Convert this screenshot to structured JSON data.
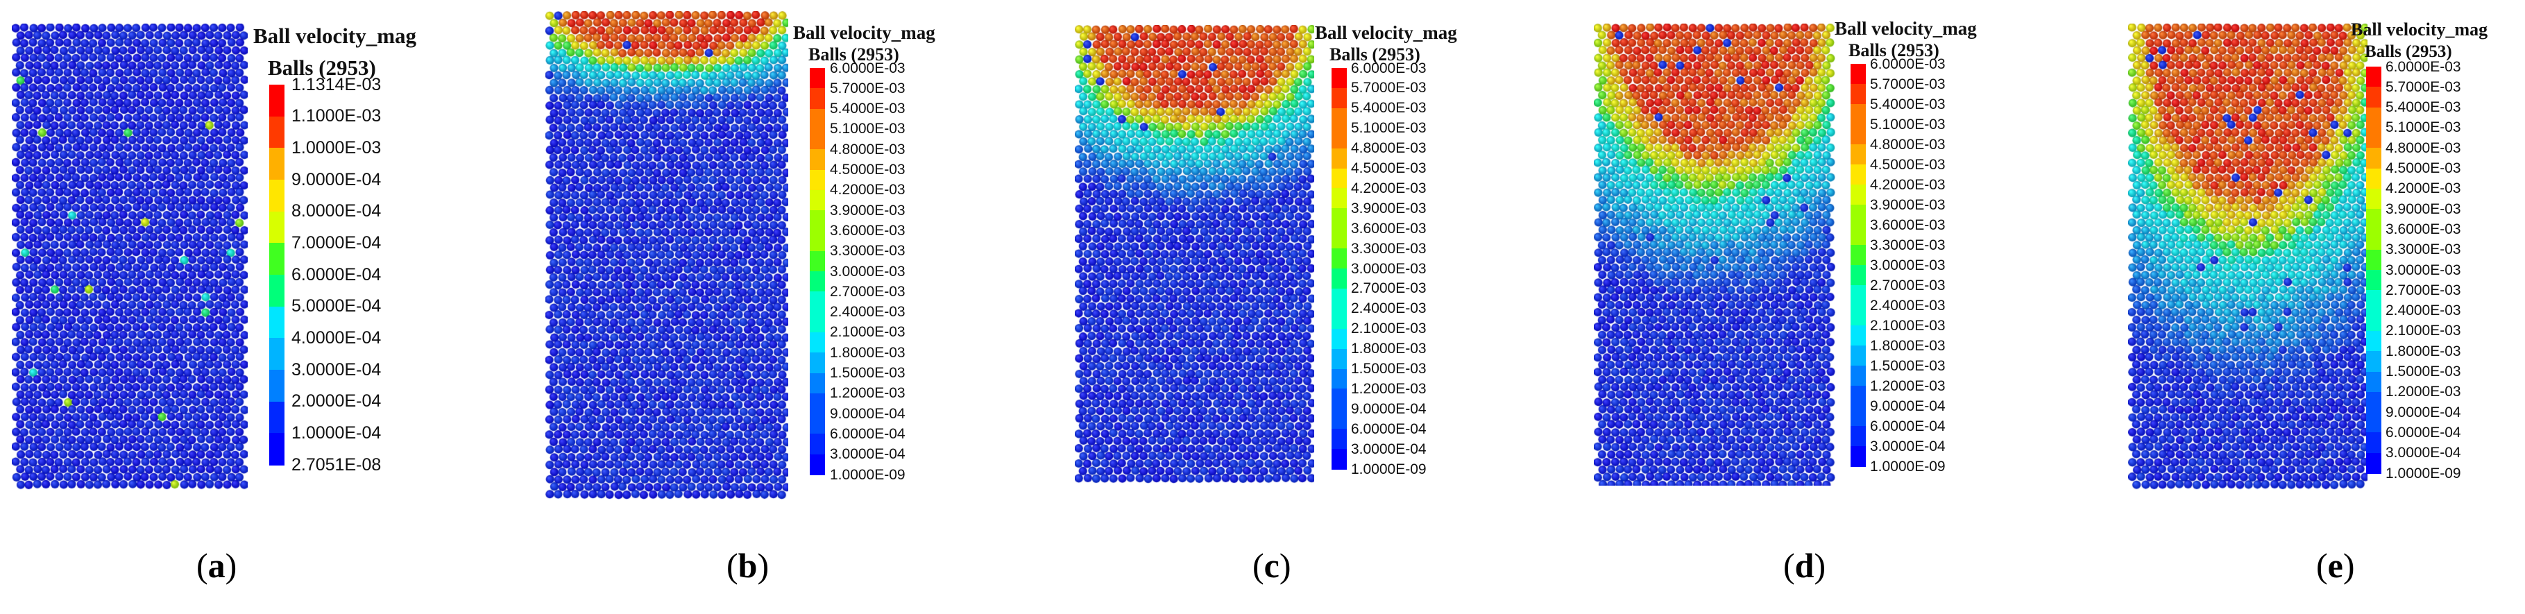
{
  "panels": [
    {
      "id": "a",
      "caption_open": "(",
      "caption_letter": "a",
      "caption_close": ")",
      "legend_title": "Ball velocity_mag",
      "legend_sub": "Balls (2953)",
      "ticks": [
        "1.1314E-03",
        "1.1000E-03",
        "1.0000E-03",
        "9.0000E-04",
        "8.0000E-04",
        "7.0000E-04",
        "6.0000E-04",
        "5.0000E-04",
        "4.0000E-04",
        "3.0000E-04",
        "2.0000E-04",
        "1.0000E-04",
        "2.7051E-08"
      ],
      "hot_fraction": 0.0
    },
    {
      "id": "b",
      "caption_open": "(",
      "caption_letter": "b",
      "caption_close": ")",
      "legend_title": "Ball velocity_mag",
      "legend_sub": "Balls (2953)",
      "ticks": [
        "6.0000E-03",
        "5.7000E-03",
        "5.4000E-03",
        "5.1000E-03",
        "4.8000E-03",
        "4.5000E-03",
        "4.2000E-03",
        "3.9000E-03",
        "3.6000E-03",
        "3.3000E-03",
        "3.0000E-03",
        "2.7000E-03",
        "2.4000E-03",
        "2.1000E-03",
        "1.8000E-03",
        "1.5000E-03",
        "1.2000E-03",
        "9.0000E-04",
        "6.0000E-04",
        "3.0000E-04",
        "1.0000E-09"
      ],
      "hot_fraction": 0.2
    },
    {
      "id": "c",
      "caption_open": "(",
      "caption_letter": "c",
      "caption_close": ")",
      "legend_title": "Ball velocity_mag",
      "legend_sub": "Balls (2953)",
      "ticks": [
        "6.0000E-03",
        "5.7000E-03",
        "5.4000E-03",
        "5.1000E-03",
        "4.8000E-03",
        "4.5000E-03",
        "4.2000E-03",
        "3.9000E-03",
        "3.6000E-03",
        "3.3000E-03",
        "3.0000E-03",
        "2.7000E-03",
        "2.4000E-03",
        "2.1000E-03",
        "1.8000E-03",
        "1.5000E-03",
        "1.2000E-03",
        "9.0000E-04",
        "6.0000E-04",
        "3.0000E-04",
        "1.0000E-09"
      ],
      "hot_fraction": 0.4
    },
    {
      "id": "d",
      "caption_open": "(",
      "caption_letter": "d",
      "caption_close": ")",
      "legend_title": "Ball velocity_mag",
      "legend_sub": "Balls (2953)",
      "ticks": [
        "6.0000E-03",
        "5.7000E-03",
        "5.4000E-03",
        "5.1000E-03",
        "4.8000E-03",
        "4.5000E-03",
        "4.2000E-03",
        "3.9000E-03",
        "3.6000E-03",
        "3.3000E-03",
        "3.0000E-03",
        "2.7000E-03",
        "2.4000E-03",
        "2.1000E-03",
        "1.8000E-03",
        "1.5000E-03",
        "1.2000E-03",
        "9.0000E-04",
        "6.0000E-04",
        "3.0000E-04",
        "1.0000E-09"
      ],
      "hot_fraction": 0.6
    },
    {
      "id": "e",
      "caption_open": "(",
      "caption_letter": "e",
      "caption_close": ")",
      "legend_title": "Ball velocity_mag",
      "legend_sub": "Balls (2953)",
      "ticks": [
        "6.0000E-03",
        "5.7000E-03",
        "5.4000E-03",
        "5.1000E-03",
        "4.8000E-03",
        "4.5000E-03",
        "4.2000E-03",
        "3.9000E-03",
        "3.6000E-03",
        "3.3000E-03",
        "3.0000E-03",
        "2.7000E-03",
        "2.4000E-03",
        "2.1000E-03",
        "1.8000E-03",
        "1.5000E-03",
        "1.2000E-03",
        "9.0000E-04",
        "6.0000E-04",
        "3.0000E-04",
        "1.0000E-09"
      ],
      "hot_fraction": 0.8
    }
  ],
  "colors": {
    "ramp": [
      "#ff0000",
      "#ff3a00",
      "#ff7a00",
      "#ffb000",
      "#ffe600",
      "#d8ff00",
      "#9cff00",
      "#40ff20",
      "#00ff7a",
      "#00ffd0",
      "#00e6ff",
      "#00b4ff",
      "#0080ff",
      "#0050ff",
      "#0028ff",
      "#0000ff"
    ],
    "background_ball": "#1e2fd0"
  }
}
